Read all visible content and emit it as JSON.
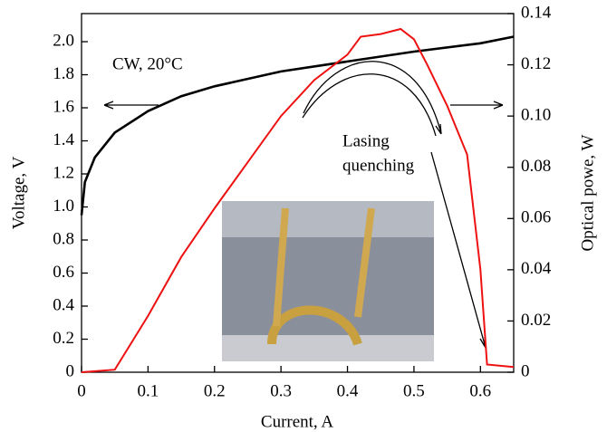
{
  "chart_data": {
    "type": "line",
    "xlabel": "Current, A",
    "ylabel": "Voltage, V",
    "y2label": "Optical powe, W",
    "annotations": [
      "CW, 20°C",
      "Lasing",
      "quenching"
    ],
    "xlim": [
      0,
      0.65
    ],
    "xticks": [
      0,
      0.1,
      0.2,
      0.3,
      0.4,
      0.5,
      0.6
    ],
    "ylim": [
      0,
      2.17
    ],
    "yticks": [
      0,
      0.2,
      0.4,
      0.6,
      0.8,
      {
        "value": 1,
        "label": "1.0"
      },
      1.2,
      1.4,
      1.6,
      1.8,
      {
        "value": 2,
        "label": "2.0"
      }
    ],
    "y2lim": [
      0,
      0.14
    ],
    "y2ticks": [
      0,
      0.02,
      0.04,
      0.06,
      0.08,
      {
        "value": 0.1,
        "label": "0.10"
      },
      0.12,
      0.14
    ],
    "series": [
      {
        "color": "#000000",
        "x": [
          0,
          0.005,
          0.02,
          0.05,
          0.1,
          0.15,
          0.2,
          0.3,
          0.4,
          0.5,
          0.6,
          0.65
        ],
        "values": [
          0.95,
          1.15,
          1.3,
          1.45,
          1.58,
          1.67,
          1.73,
          1.82,
          1.88,
          1.94,
          1.99,
          2.03
        ]
      },
      {
        "color": "#ee1111",
        "axis": "y2",
        "x": [
          0,
          0.05,
          0.1,
          0.15,
          0.2,
          0.25,
          0.3,
          0.35,
          0.4,
          0.42,
          0.45,
          0.48,
          0.5,
          0.52,
          0.55,
          0.58,
          0.6,
          0.61,
          0.65
        ],
        "values": [
          0,
          0.001,
          0.022,
          0.045,
          0.064,
          0.082,
          0.1,
          0.114,
          0.124,
          0.131,
          0.132,
          0.134,
          0.13,
          0.12,
          0.104,
          0.085,
          0.04,
          0.003,
          0.002
        ]
      }
    ]
  }
}
